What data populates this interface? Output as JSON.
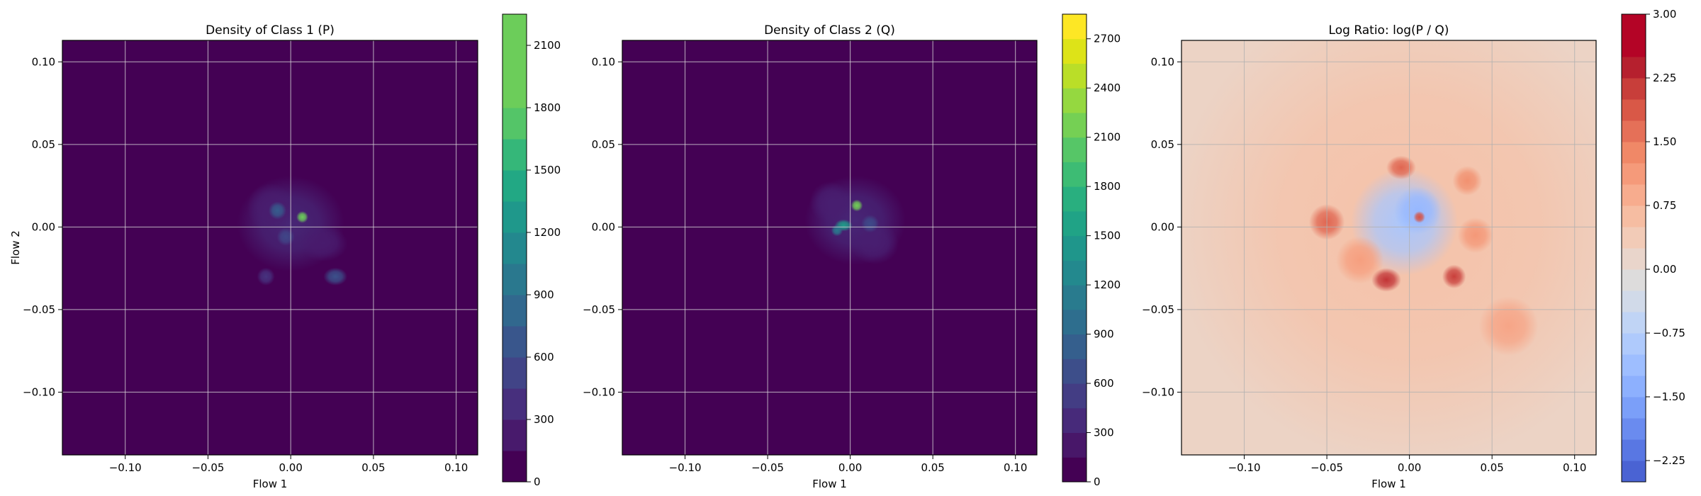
{
  "chart_data": [
    {
      "type": "heatmap",
      "title": "Density of Class 1 (P)",
      "xlabel": "Flow 1",
      "ylabel": "Flow 2",
      "xlim": [
        -0.138,
        0.113
      ],
      "ylim": [
        -0.138,
        0.113
      ],
      "xticks": [
        -0.1,
        -0.05,
        0.0,
        0.05,
        0.1
      ],
      "xtick_labels": [
        "−0.10",
        "−0.05",
        "0.00",
        "0.05",
        "0.10"
      ],
      "yticks": [
        -0.1,
        -0.05,
        0.0,
        0.05,
        0.1
      ],
      "ytick_labels": [
        "−0.10",
        "−0.05",
        "0.00",
        "0.05",
        "0.10"
      ],
      "grid": true,
      "background_color": "#440154",
      "colormap": "viridis",
      "colorbar": {
        "min": 0,
        "max": 2250,
        "ticks": [
          0,
          300,
          600,
          900,
          1200,
          1500,
          1800,
          2100
        ],
        "tick_labels": [
          "0",
          "300",
          "600",
          "900",
          "1200",
          "1500",
          "1800",
          "2100"
        ],
        "colors": [
          "#440154",
          "#481a6c",
          "#472f7d",
          "#414487",
          "#39568c",
          "#31688e",
          "#2a788e",
          "#23888e",
          "#1f988b",
          "#22a884",
          "#35b779",
          "#54c568",
          "#6ccd5a",
          "#6ccd5a",
          "#6ccd5a"
        ]
      },
      "density_blobs": [
        {
          "x": 0.0,
          "y": 0.002,
          "sx": 0.018,
          "sy": 0.016,
          "level": 250
        },
        {
          "x": -0.012,
          "y": 0.012,
          "sx": 0.008,
          "sy": 0.008,
          "level": 180
        },
        {
          "x": 0.02,
          "y": -0.01,
          "sx": 0.008,
          "sy": 0.006,
          "level": 170
        },
        {
          "x": 0.007,
          "y": 0.006,
          "sx": 0.002,
          "sy": 0.002,
          "level": 2150
        },
        {
          "x": -0.008,
          "y": 0.01,
          "sx": 0.003,
          "sy": 0.003,
          "level": 700
        },
        {
          "x": 0.027,
          "y": -0.03,
          "sx": 0.004,
          "sy": 0.003,
          "level": 600
        },
        {
          "x": -0.015,
          "y": -0.03,
          "sx": 0.003,
          "sy": 0.003,
          "level": 350
        },
        {
          "x": -0.003,
          "y": -0.006,
          "sx": 0.003,
          "sy": 0.003,
          "level": 500
        }
      ]
    },
    {
      "type": "heatmap",
      "title": "Density of Class 2 (Q)",
      "xlabel": "Flow 1",
      "ylabel": "",
      "xlim": [
        -0.138,
        0.113
      ],
      "ylim": [
        -0.138,
        0.113
      ],
      "xticks": [
        -0.1,
        -0.05,
        0.0,
        0.05,
        0.1
      ],
      "xtick_labels": [
        "−0.10",
        "−0.05",
        "0.00",
        "0.05",
        "0.10"
      ],
      "yticks": [
        -0.1,
        -0.05,
        0.0,
        0.05,
        0.1
      ],
      "ytick_labels": [
        "−0.10",
        "−0.05",
        "0.00",
        "0.05",
        "0.10"
      ],
      "grid": true,
      "background_color": "#440154",
      "colormap": "viridis",
      "colorbar": {
        "min": 0,
        "max": 2850,
        "ticks": [
          0,
          300,
          600,
          900,
          1200,
          1500,
          1800,
          2100,
          2400,
          2700
        ],
        "tick_labels": [
          "0",
          "300",
          "600",
          "900",
          "1200",
          "1500",
          "1800",
          "2100",
          "2400",
          "2700"
        ],
        "colors": [
          "#440154",
          "#481769",
          "#472a7a",
          "#433d84",
          "#3d4e8a",
          "#355f8d",
          "#2e6e8e",
          "#297b8e",
          "#23898e",
          "#1f968b",
          "#20a386",
          "#29af7f",
          "#3dbc74",
          "#56c667",
          "#75d054",
          "#95d840",
          "#bade28",
          "#dde318",
          "#fde725"
        ]
      },
      "density_blobs": [
        {
          "x": 0.003,
          "y": 0.004,
          "sx": 0.017,
          "sy": 0.015,
          "level": 280
        },
        {
          "x": -0.012,
          "y": 0.015,
          "sx": 0.007,
          "sy": 0.007,
          "level": 220
        },
        {
          "x": 0.015,
          "y": -0.01,
          "sx": 0.008,
          "sy": 0.007,
          "level": 220
        },
        {
          "x": 0.004,
          "y": 0.013,
          "sx": 0.002,
          "sy": 0.002,
          "level": 2200
        },
        {
          "x": -0.004,
          "y": 0.001,
          "sx": 0.003,
          "sy": 0.002,
          "level": 1500
        },
        {
          "x": -0.008,
          "y": -0.002,
          "sx": 0.002,
          "sy": 0.002,
          "level": 1100
        },
        {
          "x": 0.012,
          "y": 0.002,
          "sx": 0.003,
          "sy": 0.003,
          "level": 600
        }
      ]
    },
    {
      "type": "heatmap",
      "title": "Log Ratio: log(P / Q)",
      "xlabel": "Flow 1",
      "ylabel": "",
      "xlim": [
        -0.138,
        0.113
      ],
      "ylim": [
        -0.138,
        0.113
      ],
      "xticks": [
        -0.1,
        -0.05,
        0.0,
        0.05,
        0.1
      ],
      "xtick_labels": [
        "−0.10",
        "−0.05",
        "0.00",
        "0.05",
        "0.10"
      ],
      "yticks": [
        -0.1,
        -0.05,
        0.0,
        0.05,
        0.1
      ],
      "ytick_labels": [
        "−0.10",
        "−0.05",
        "0.00",
        "0.05",
        "0.10"
      ],
      "grid": true,
      "background_color": "#ecd3c5",
      "colormap": "coolwarm",
      "colorbar": {
        "min": -2.5,
        "max": 3.0,
        "ticks": [
          -2.25,
          -1.5,
          -0.75,
          0.0,
          0.75,
          1.5,
          2.25,
          3.0
        ],
        "tick_labels": [
          "−2.25",
          "−1.50",
          "−0.75",
          "0.00",
          "0.75",
          "1.50",
          "2.25",
          "3.00"
        ],
        "colors": [
          "#4a63d3",
          "#5977e3",
          "#6a8bef",
          "#7b9ff9",
          "#8db0fe",
          "#9ebeff",
          "#afcafc",
          "#c0d4f5",
          "#d1dae9",
          "#dddcdc",
          "#e9d5cb",
          "#f2cbb7",
          "#f6bda2",
          "#f7ac8e",
          "#f59a7a",
          "#f08867",
          "#e57058",
          "#d95847",
          "#c83e3a",
          "#b6202e",
          "#b40426",
          "#b40426"
        ]
      },
      "ratio_blobs": [
        {
          "x": 0.0,
          "y": 0.0,
          "sx": 0.08,
          "sy": 0.08,
          "value": 0.55
        },
        {
          "x": -0.003,
          "y": 0.003,
          "sx": 0.018,
          "sy": 0.018,
          "value": -1.0
        },
        {
          "x": 0.005,
          "y": 0.01,
          "sx": 0.008,
          "sy": 0.008,
          "value": -1.3
        },
        {
          "x": -0.014,
          "y": -0.032,
          "sx": 0.005,
          "sy": 0.004,
          "value": 2.3
        },
        {
          "x": 0.027,
          "y": -0.03,
          "sx": 0.004,
          "sy": 0.004,
          "value": 2.2
        },
        {
          "x": -0.05,
          "y": 0.003,
          "sx": 0.006,
          "sy": 0.006,
          "value": 1.8
        },
        {
          "x": -0.005,
          "y": 0.036,
          "sx": 0.005,
          "sy": 0.004,
          "value": 1.8
        },
        {
          "x": 0.035,
          "y": 0.028,
          "sx": 0.005,
          "sy": 0.005,
          "value": 1.3
        },
        {
          "x": 0.006,
          "y": 0.006,
          "sx": 0.002,
          "sy": 0.002,
          "value": 2.0
        },
        {
          "x": 0.04,
          "y": -0.005,
          "sx": 0.006,
          "sy": 0.006,
          "value": 1.2
        },
        {
          "x": -0.03,
          "y": -0.02,
          "sx": 0.008,
          "sy": 0.008,
          "value": 1.1
        },
        {
          "x": 0.06,
          "y": -0.06,
          "sx": 0.01,
          "sy": 0.01,
          "value": 1.0
        }
      ]
    }
  ]
}
